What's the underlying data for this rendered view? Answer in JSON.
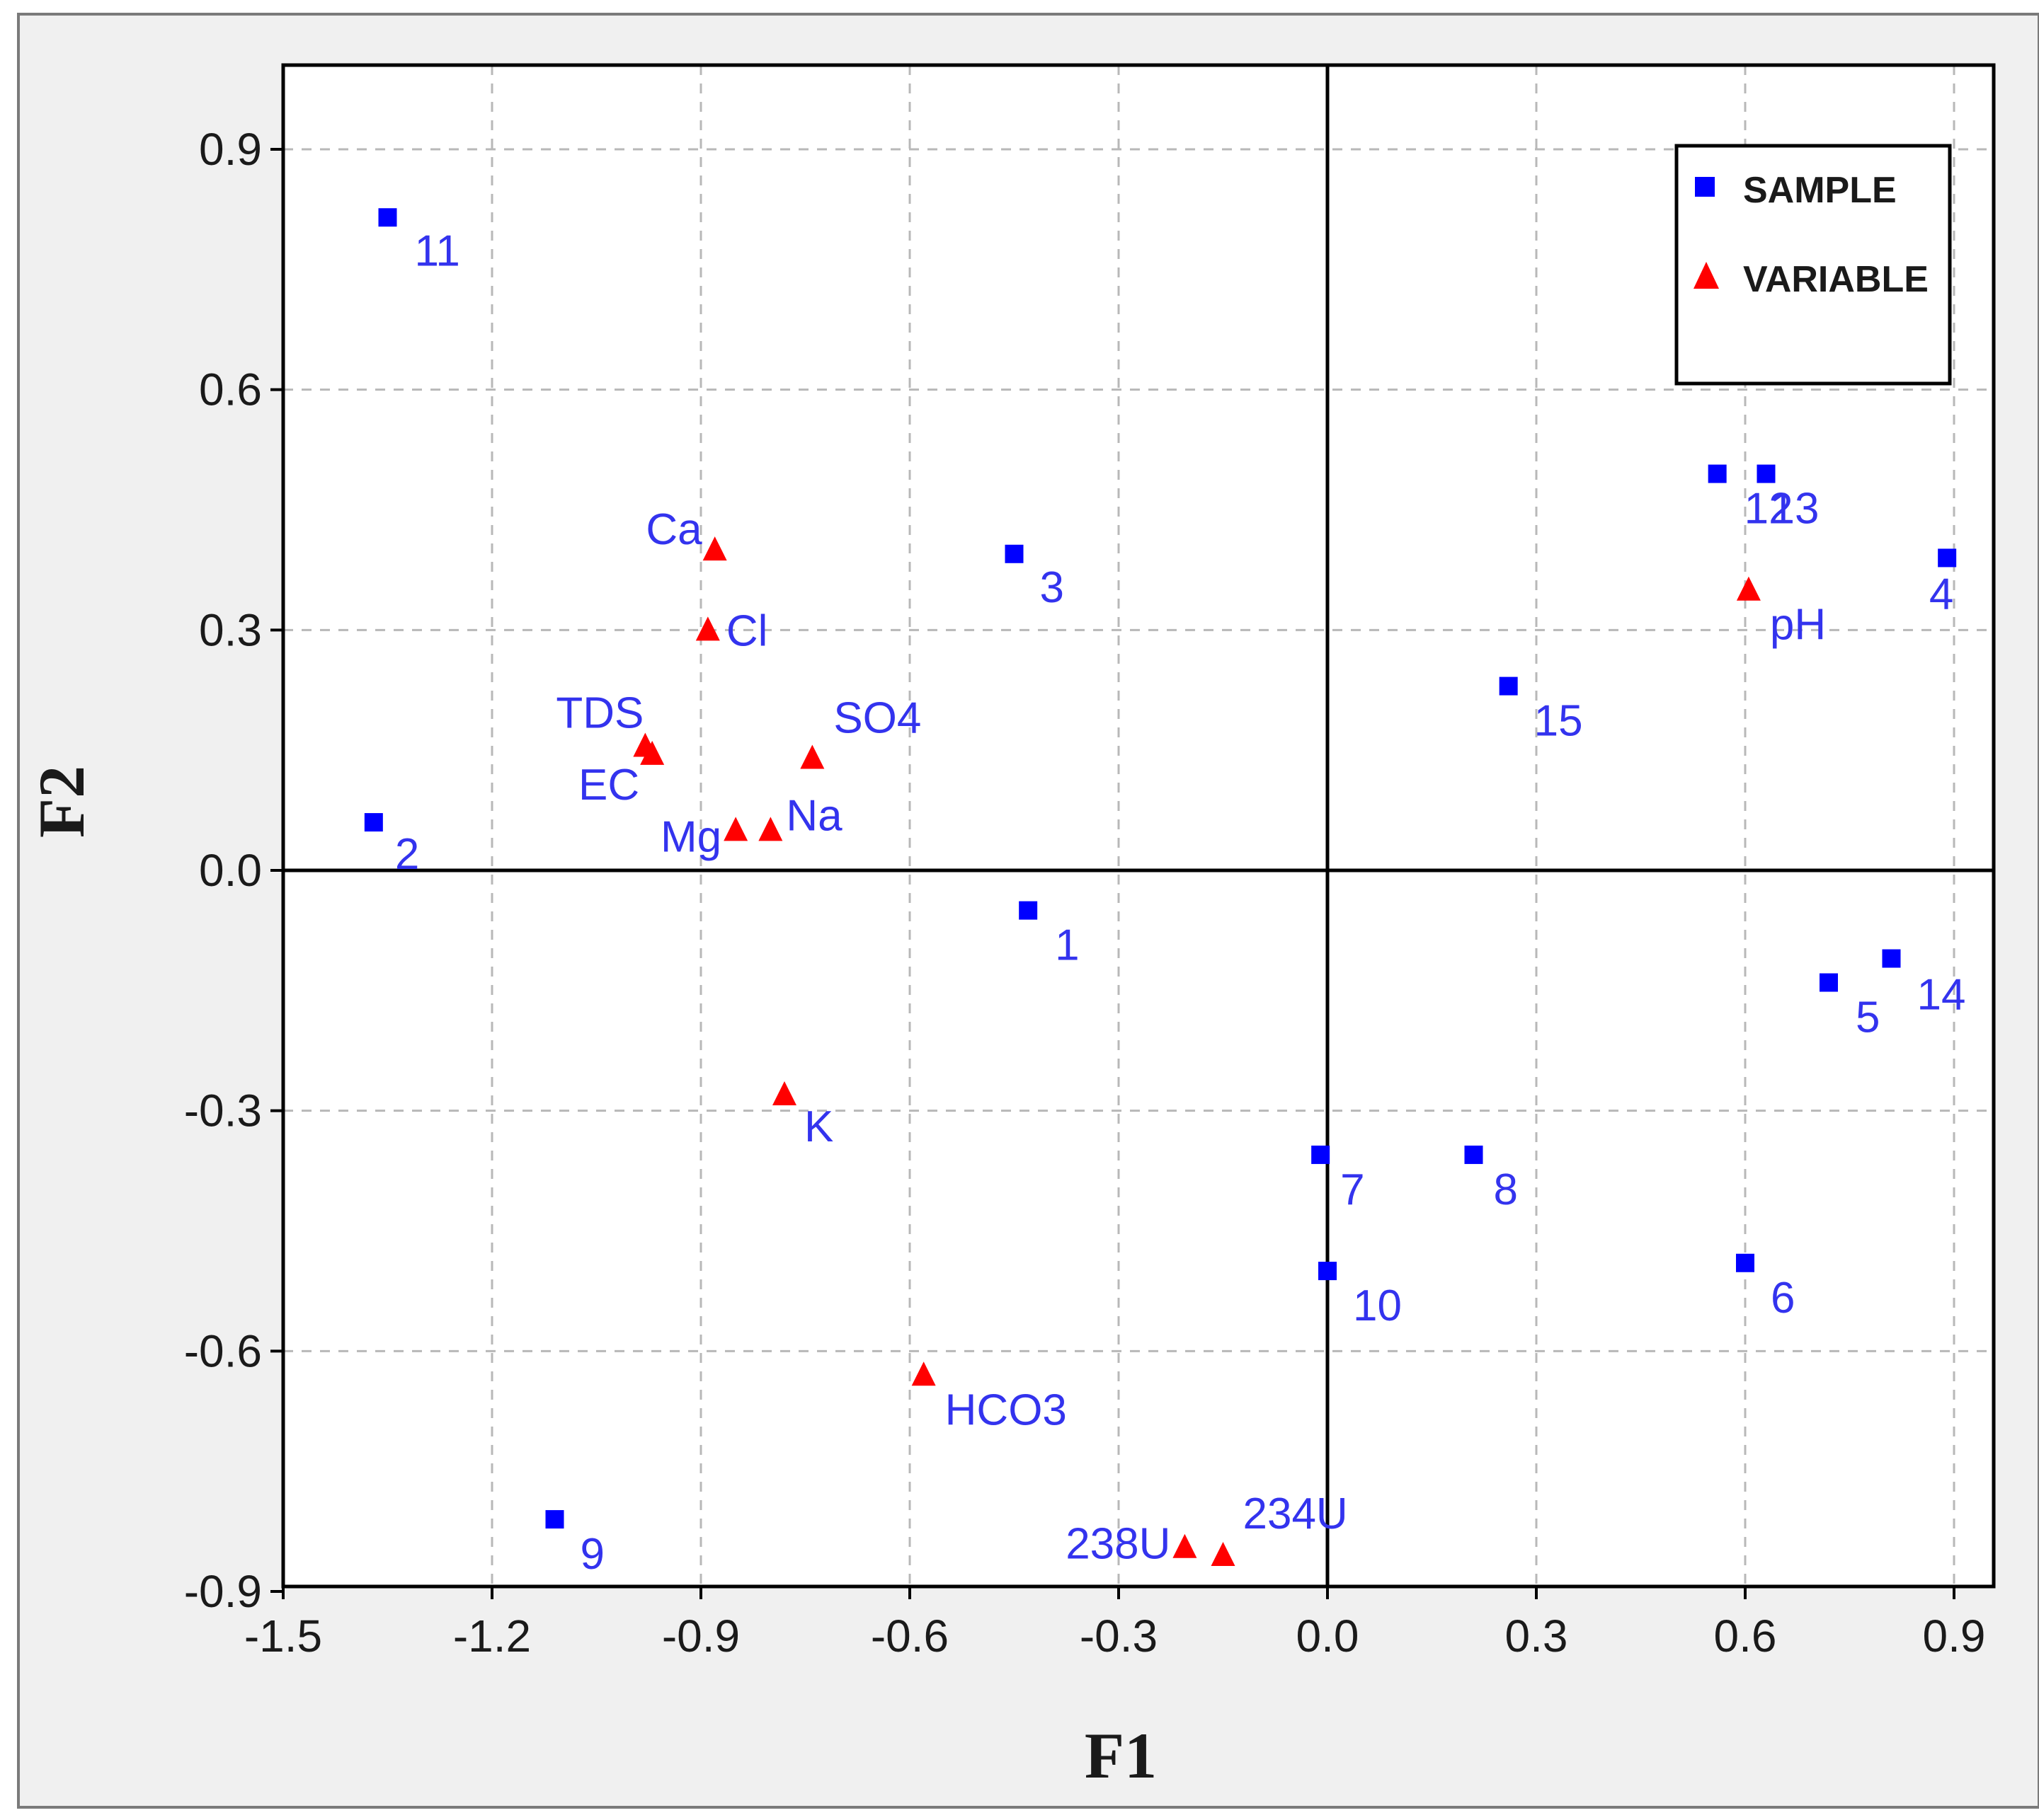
{
  "chart_data": {
    "type": "scatter",
    "title": "",
    "xlabel": "F1",
    "ylabel": "F2",
    "xlim": [
      -1.5,
      0.95
    ],
    "ylim": [
      -0.9,
      1.0
    ],
    "x_ticks": [
      -1.5,
      -1.2,
      -0.9,
      -0.6,
      -0.3,
      0.0,
      0.3,
      0.6,
      0.9
    ],
    "y_ticks": [
      -0.9,
      -0.6,
      -0.3,
      0.0,
      0.3,
      0.6,
      0.9
    ],
    "x_tick_labels": [
      "-1.5",
      "-1.2",
      "-0.9",
      "-0.6",
      "-0.3",
      "0.0",
      "0.3",
      "0.6",
      "0.9"
    ],
    "y_tick_labels": [
      "-0.9",
      "-0.6",
      "-0.3",
      "0.0",
      "0.3",
      "0.6",
      "0.9"
    ],
    "grid": true,
    "legend_position": "top-right",
    "series": [
      {
        "name": "SAMPLE",
        "marker": "square",
        "color": "#0000ff",
        "label_color": "#3333ee",
        "points": [
          {
            "label": "1",
            "x": -0.43,
            "y": -0.05
          },
          {
            "label": "2",
            "x": -1.37,
            "y": 0.06
          },
          {
            "label": "3",
            "x": -0.45,
            "y": 0.395
          },
          {
            "label": "4",
            "x": 0.89,
            "y": 0.39
          },
          {
            "label": "5",
            "x": 0.72,
            "y": -0.14
          },
          {
            "label": "6",
            "x": 0.6,
            "y": -0.49
          },
          {
            "label": "7",
            "x": -0.01,
            "y": -0.355
          },
          {
            "label": "8",
            "x": 0.21,
            "y": -0.355
          },
          {
            "label": "9",
            "x": -1.11,
            "y": -0.81
          },
          {
            "label": "10",
            "x": 0.0,
            "y": -0.5
          },
          {
            "label": "11",
            "x": -1.35,
            "y": 0.815
          },
          {
            "label": "12",
            "x": 0.56,
            "y": 0.495
          },
          {
            "label": "13",
            "x": 0.63,
            "y": 0.495
          },
          {
            "label": "14",
            "x": 0.81,
            "y": -0.11
          },
          {
            "label": "15",
            "x": 0.26,
            "y": 0.23
          }
        ]
      },
      {
        "name": "VARIABLE",
        "marker": "triangle",
        "color": "#ff0000",
        "label_color": "#3333ee",
        "points": [
          {
            "label": "Ca",
            "x": -0.88,
            "y": 0.4
          },
          {
            "label": "Cl",
            "x": -0.89,
            "y": 0.3
          },
          {
            "label": "TDS",
            "x": -0.98,
            "y": 0.155
          },
          {
            "label": "EC",
            "x": -0.97,
            "y": 0.145
          },
          {
            "label": "SO4",
            "x": -0.74,
            "y": 0.14
          },
          {
            "label": "Na",
            "x": -0.8,
            "y": 0.05
          },
          {
            "label": "Mg",
            "x": -0.85,
            "y": 0.05
          },
          {
            "label": "K",
            "x": -0.78,
            "y": -0.28
          },
          {
            "label": "HCO3",
            "x": -0.58,
            "y": -0.63
          },
          {
            "label": "238U",
            "x": -0.205,
            "y": -0.845
          },
          {
            "label": "234U",
            "x": -0.15,
            "y": -0.855
          },
          {
            "label": "pH",
            "x": 0.605,
            "y": 0.35
          }
        ]
      }
    ]
  }
}
